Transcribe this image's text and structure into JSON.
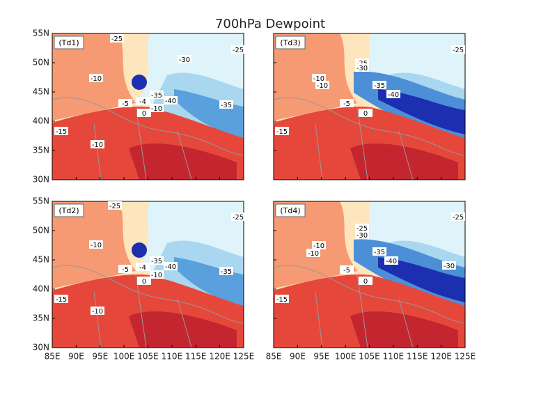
{
  "title": "700hPa Dewpoint",
  "panels": [
    {
      "label": "(Td1)",
      "contour_labels": [
        "-25",
        "-25",
        "-30",
        "-10",
        "-5",
        "-4",
        "-35",
        "-40",
        "-10",
        "0",
        "-35",
        "-15",
        "-10"
      ]
    },
    {
      "label": "(Td3)",
      "contour_labels": [
        "-25",
        "-25",
        "-30",
        "-10",
        "-10",
        "-35",
        "-40",
        "-5",
        "0",
        "-15"
      ]
    },
    {
      "label": "(Td2)",
      "contour_labels": [
        "-25",
        "-25",
        "-10",
        "-5",
        "-4",
        "-35",
        "-40",
        "-10",
        "0",
        "-35",
        "-15",
        "-10"
      ]
    },
    {
      "label": "(Td4)",
      "contour_labels": [
        "-25",
        "-25",
        "-30",
        "-10",
        "-10",
        "-35",
        "-40",
        "-30",
        "-5",
        "0",
        "-15"
      ]
    }
  ],
  "lat_labels": [
    "55N",
    "50N",
    "45N",
    "40N",
    "35N",
    "30N"
  ],
  "lon_labels": [
    "85E",
    "90E",
    "95E",
    "100E",
    "105E",
    "110E",
    "115E",
    "120E",
    "125E"
  ]
}
